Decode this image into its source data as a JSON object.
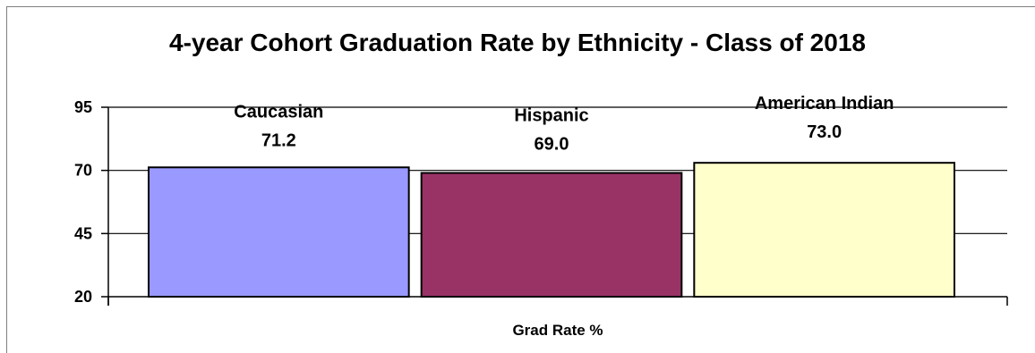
{
  "chart_data": {
    "type": "bar",
    "title": "4-year Cohort Graduation Rate by Ethnicity - Class of 2018",
    "xlabel": "Grad Rate %",
    "ylabel": "",
    "ylim": [
      20,
      95
    ],
    "yticks": [
      20,
      45,
      70,
      95
    ],
    "grid": true,
    "legend": "none",
    "series": [
      {
        "name": "Caucasian",
        "value": 71.2,
        "label": "71.2",
        "color": "#9999ff"
      },
      {
        "name": "Hispanic",
        "value": 69.0,
        "label": "69.0",
        "color": "#993366"
      },
      {
        "name": "American Indian",
        "value": 73.0,
        "label": "73.0",
        "color": "#ffffcc"
      }
    ]
  }
}
